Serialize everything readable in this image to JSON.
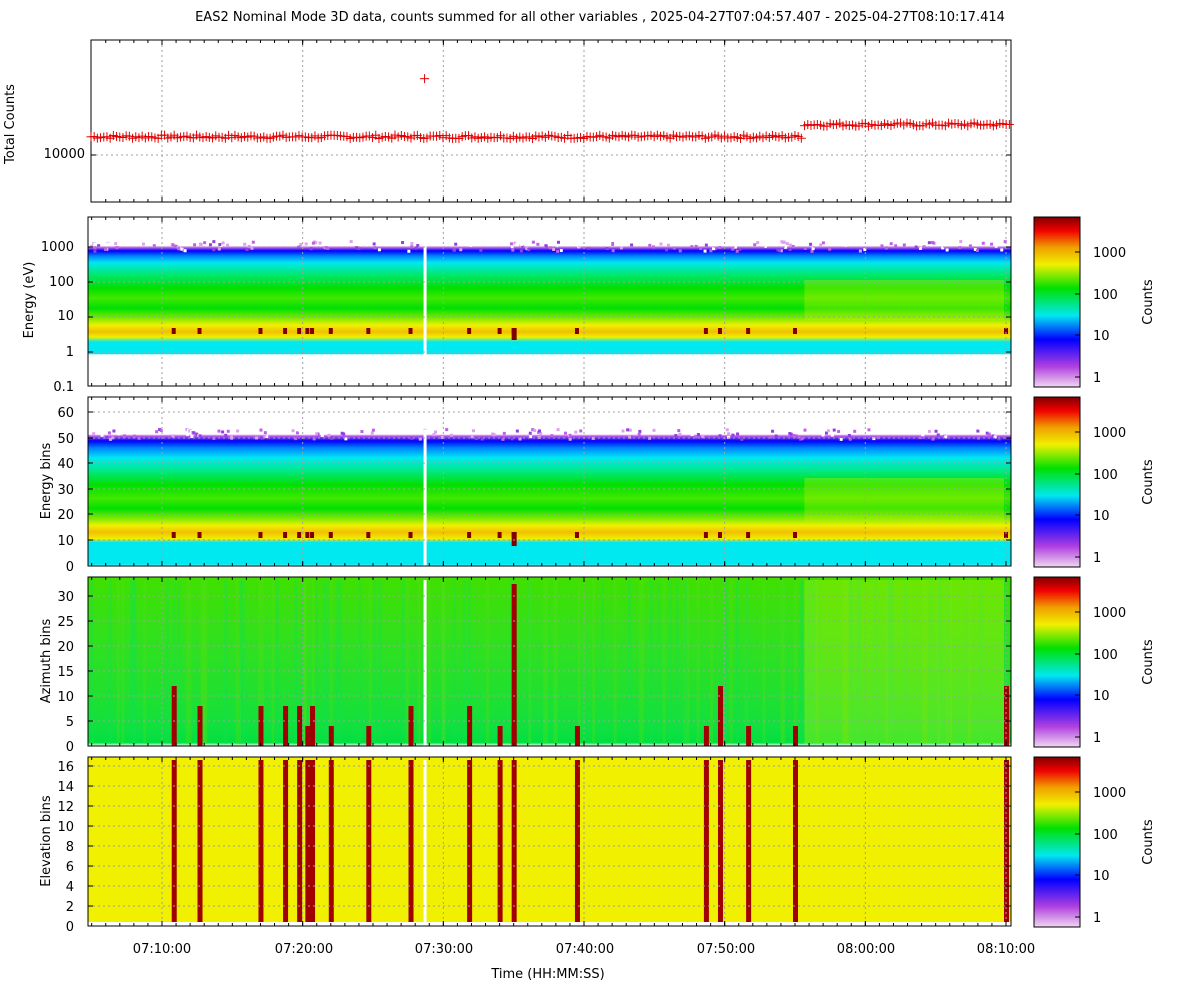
{
  "title": "EAS2  Nominal Mode 3D data, counts summed for all other variables ,  2025-04-27T07:04:57.407 - 2025-04-27T08:10:17.414",
  "xlabel": "Time (HH:MM:SS)",
  "colorbar": {
    "label": "Counts",
    "ticks": [
      "1000",
      "100",
      "10",
      "1"
    ],
    "colors": [
      "#f0d8f0",
      "#b040e0",
      "#0000ff",
      "#00e8f0",
      "#00e000",
      "#f0f000",
      "#f0a000",
      "#f00000",
      "#800000"
    ]
  },
  "chart_data": [
    {
      "type": "scatter",
      "panel": "total-counts",
      "ylabel": "Total Counts",
      "y_scale": "log",
      "ytick_labels": [
        "10000"
      ],
      "marker": "+",
      "marker_color": "#e00000",
      "x_tick_labels": [
        "07:10:00",
        "07:20:00",
        "07:30:00",
        "07:40:00",
        "07:50:00",
        "08:00:00",
        "08:10:00"
      ],
      "xlim": [
        "07:04:57",
        "08:10:17"
      ],
      "series_summary": [
        {
          "segment": "07:05-07:55",
          "approx_counts": 13000
        },
        {
          "segment": "07:55-08:10",
          "approx_counts": 15500
        }
      ],
      "outlier": {
        "x": "07:28:40",
        "y": 30000
      }
    },
    {
      "type": "heatmap",
      "panel": "energy",
      "ylabel": "Energy (eV)",
      "y_scale": "log",
      "ytick_labels": [
        "1000",
        "100",
        "10",
        "1",
        "0.1"
      ]
    },
    {
      "type": "heatmap",
      "panel": "energy-bins",
      "ylabel": "Energy bins",
      "ytick_labels": [
        "60",
        "50",
        "40",
        "30",
        "20",
        "10",
        "0"
      ]
    },
    {
      "type": "heatmap",
      "panel": "azimuth-bins",
      "ylabel": "Azimuth bins",
      "ytick_labels": [
        "30",
        "25",
        "20",
        "15",
        "10",
        "5",
        "0"
      ]
    },
    {
      "type": "heatmap",
      "panel": "elevation-bins",
      "ylabel": "Elevation bins",
      "ytick_labels": [
        "16",
        "14",
        "12",
        "10",
        "8",
        "6",
        "4",
        "2",
        "0"
      ]
    }
  ],
  "spike_times": [
    "07:10:50",
    "07:12:40",
    "07:17:00",
    "07:18:45",
    "07:19:45",
    "07:20:20",
    "07:20:40",
    "07:22:00",
    "07:24:40",
    "07:27:40",
    "07:31:50",
    "07:34:00",
    "07:35:00",
    "07:39:30",
    "07:48:40",
    "07:49:40",
    "07:51:40",
    "07:55:00",
    "08:10:00"
  ],
  "data_gap_time": "07:28:40"
}
